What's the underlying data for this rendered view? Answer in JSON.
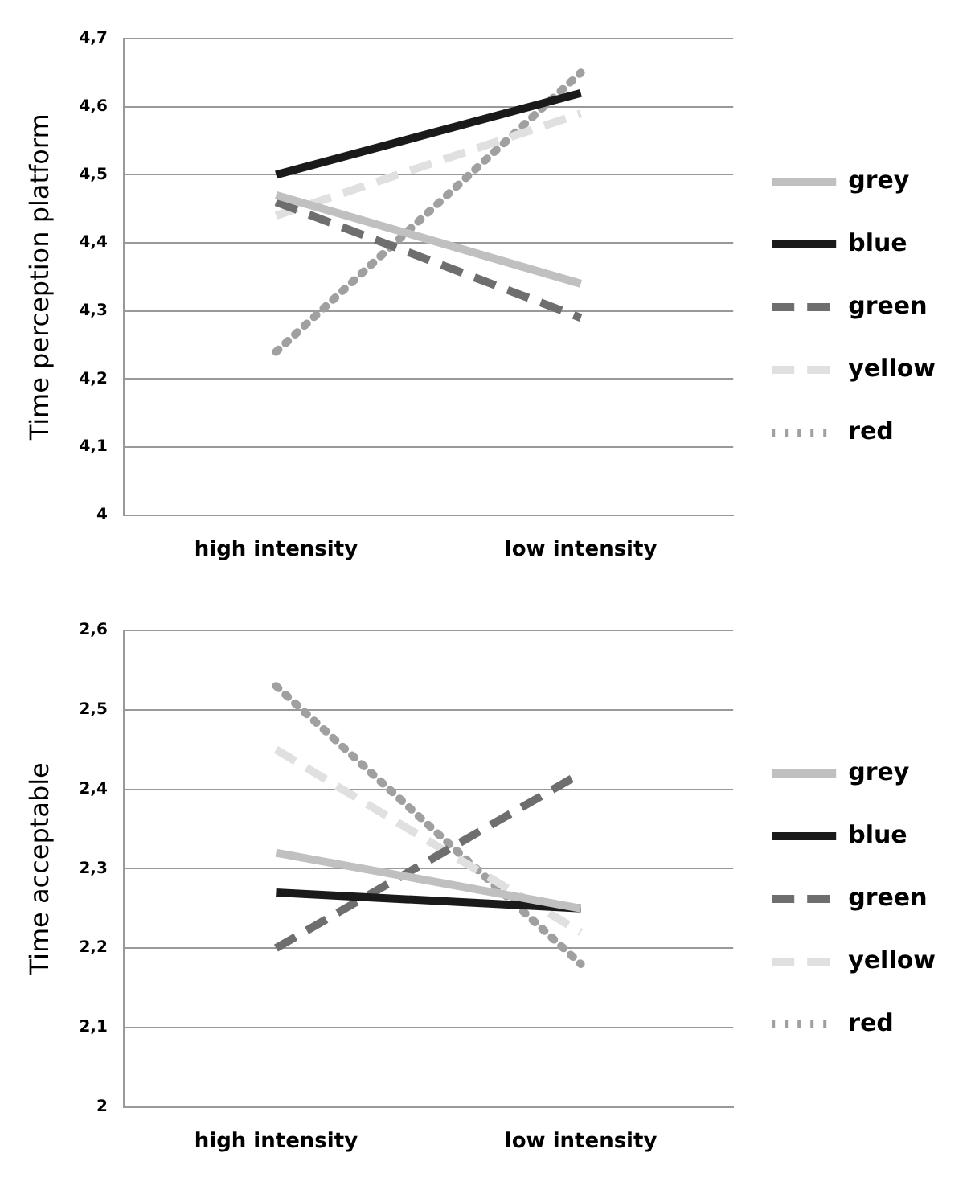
{
  "chart_data": [
    {
      "type": "line",
      "ylabel": "Time perception platform",
      "categories": [
        "high intensity",
        "low intensity"
      ],
      "series": [
        {
          "name": "grey",
          "color": "#c0c0c0",
          "line_style": "solid",
          "values": [
            4.47,
            4.34
          ]
        },
        {
          "name": "blue",
          "color": "#1a1a1a",
          "line_style": "solid",
          "values": [
            4.5,
            4.62
          ]
        },
        {
          "name": "green",
          "color": "#6e6e6e",
          "line_style": "dashed",
          "values": [
            4.46,
            4.29
          ]
        },
        {
          "name": "yellow",
          "color": "#e0e0e0",
          "line_style": "dashed",
          "values": [
            4.44,
            4.59
          ]
        },
        {
          "name": "red",
          "color": "#a0a0a0",
          "line_style": "dotted",
          "values": [
            4.24,
            4.65
          ]
        }
      ],
      "ylim": [
        4,
        4.7
      ],
      "yticks": [
        4,
        {
          "value": 4.1,
          "label": "4,1"
        },
        {
          "value": 4.2,
          "label": "4,2"
        },
        {
          "value": 4.3,
          "label": "4,3"
        },
        {
          "value": 4.4,
          "label": "4,4"
        },
        {
          "value": 4.5,
          "label": "4,5"
        },
        {
          "value": 4.6,
          "label": "4,6"
        },
        {
          "value": 4.7,
          "label": "4,7"
        }
      ],
      "grid": "y",
      "legend": "right",
      "marker": "none"
    },
    {
      "type": "line",
      "ylabel": "Time acceptable",
      "categories": [
        "high intensity",
        "low intensity"
      ],
      "series": [
        {
          "name": "grey",
          "color": "#c0c0c0",
          "line_style": "solid",
          "values": [
            2.32,
            2.25
          ]
        },
        {
          "name": "blue",
          "color": "#1a1a1a",
          "line_style": "solid",
          "values": [
            2.27,
            2.25
          ]
        },
        {
          "name": "green",
          "color": "#6e6e6e",
          "line_style": "dashed",
          "values": [
            2.2,
            2.42
          ]
        },
        {
          "name": "yellow",
          "color": "#e0e0e0",
          "line_style": "dashed",
          "values": [
            2.45,
            2.22
          ]
        },
        {
          "name": "red",
          "color": "#a0a0a0",
          "line_style": "dotted",
          "values": [
            2.53,
            2.18
          ]
        }
      ],
      "ylim": [
        2,
        2.6
      ],
      "yticks": [
        2,
        {
          "value": 2.1,
          "label": "2,1"
        },
        {
          "value": 2.2,
          "label": "2,2"
        },
        {
          "value": 2.3,
          "label": "2,3"
        },
        {
          "value": 2.4,
          "label": "2,4"
        },
        {
          "value": 2.5,
          "label": "2,5"
        },
        {
          "value": 2.6,
          "label": "2,6"
        }
      ],
      "grid": "y",
      "legend": "right",
      "marker": "none"
    }
  ]
}
